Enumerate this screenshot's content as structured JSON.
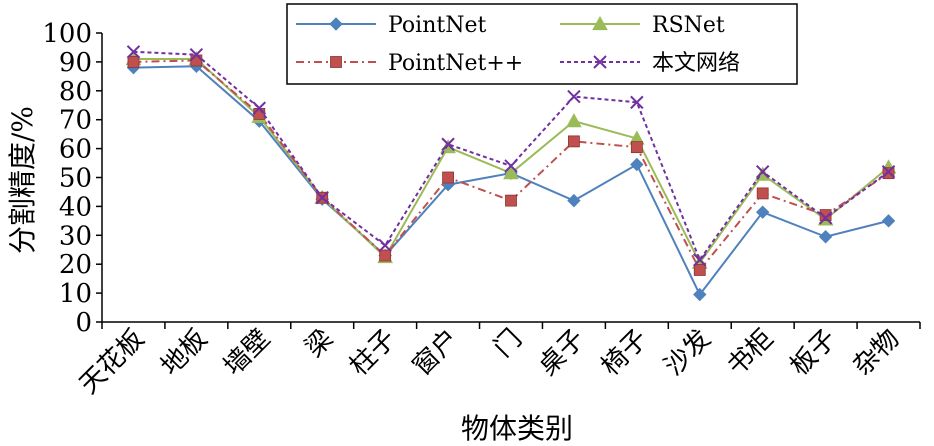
{
  "chart_data": {
    "type": "line",
    "xlabel": "物体类别",
    "ylabel": "分割精度/%",
    "ylim": [
      0,
      100
    ],
    "yticks": [
      0,
      10,
      20,
      30,
      40,
      50,
      60,
      70,
      80,
      90,
      100
    ],
    "grid": false,
    "legend_position": "top-center",
    "categories": [
      "天花板",
      "地板",
      "墙壁",
      "梁",
      "柱子",
      "窗户",
      "门",
      "桌子",
      "椅子",
      "沙发",
      "书柜",
      "板子",
      "杂物"
    ],
    "series": [
      {
        "name": "PointNet",
        "color": "#4f81bd",
        "dash": "solid",
        "marker": "diamond",
        "values": [
          88,
          88.5,
          69.5,
          42.5,
          23,
          47.5,
          51.5,
          42,
          54.5,
          9.5,
          38,
          29.5,
          35
        ]
      },
      {
        "name": "RSNet",
        "color": "#9bbb59",
        "dash": "solid",
        "marker": "triangle",
        "values": [
          91,
          91,
          71,
          43,
          22.5,
          60.5,
          51.5,
          69.5,
          63.5,
          20.5,
          51,
          35.5,
          53.5
        ]
      },
      {
        "name": "PointNet++",
        "color": "#c0504d",
        "dash": "dashdot",
        "marker": "square",
        "values": [
          90,
          90.5,
          72,
          43,
          23,
          50,
          42,
          62.5,
          60.5,
          18,
          44.5,
          37,
          51.5
        ]
      },
      {
        "name": "本文网络",
        "color": "#7030a0",
        "dash": "dotted",
        "marker": "x",
        "values": [
          93.5,
          92.5,
          74,
          43,
          26.5,
          61.5,
          54,
          78,
          76,
          21.5,
          52,
          36,
          52
        ]
      }
    ]
  }
}
